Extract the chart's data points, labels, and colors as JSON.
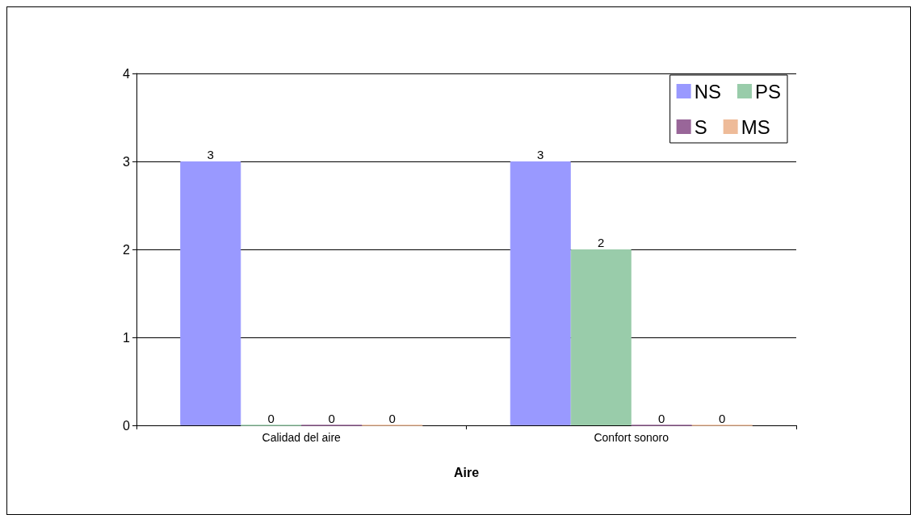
{
  "chart_data": {
    "type": "bar",
    "xlabel": "Aire",
    "categories": [
      "Calidad del aire",
      "Confort sonoro"
    ],
    "series": [
      {
        "name": "NS",
        "color": "#9999ff",
        "values": [
          3,
          3
        ]
      },
      {
        "name": "PS",
        "color": "#99ccaa",
        "values": [
          0,
          2
        ]
      },
      {
        "name": "S",
        "color": "#996699",
        "values": [
          0,
          0
        ]
      },
      {
        "name": "MS",
        "color": "#eebb99",
        "values": [
          0,
          0
        ]
      }
    ],
    "ylim": [
      0,
      4
    ],
    "yticks": [
      0,
      1,
      2,
      3,
      4
    ],
    "grid": "y",
    "legend": "top right",
    "data_labels": true
  }
}
